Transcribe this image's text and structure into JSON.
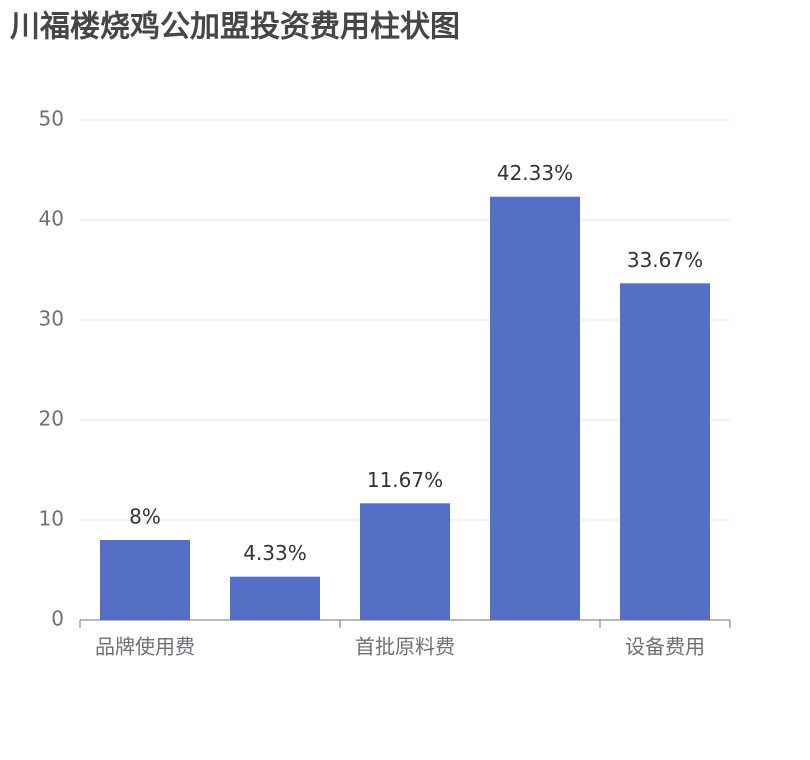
{
  "chart_data": {
    "type": "bar",
    "title": "川福楼烧鸡公加盟投资费用柱状图",
    "categories": [
      "品牌使用费",
      null,
      "首批原料费",
      null,
      "设备费用"
    ],
    "values": [
      8,
      4.33,
      11.67,
      42.33,
      33.67
    ],
    "value_labels": [
      "8%",
      "4.33%",
      "11.67%",
      "42.33%",
      "33.67%"
    ],
    "color": "#5470c6",
    "ylim": [
      0,
      50
    ],
    "yticks": [
      0,
      10,
      20,
      30,
      40,
      50
    ],
    "grid": true
  }
}
